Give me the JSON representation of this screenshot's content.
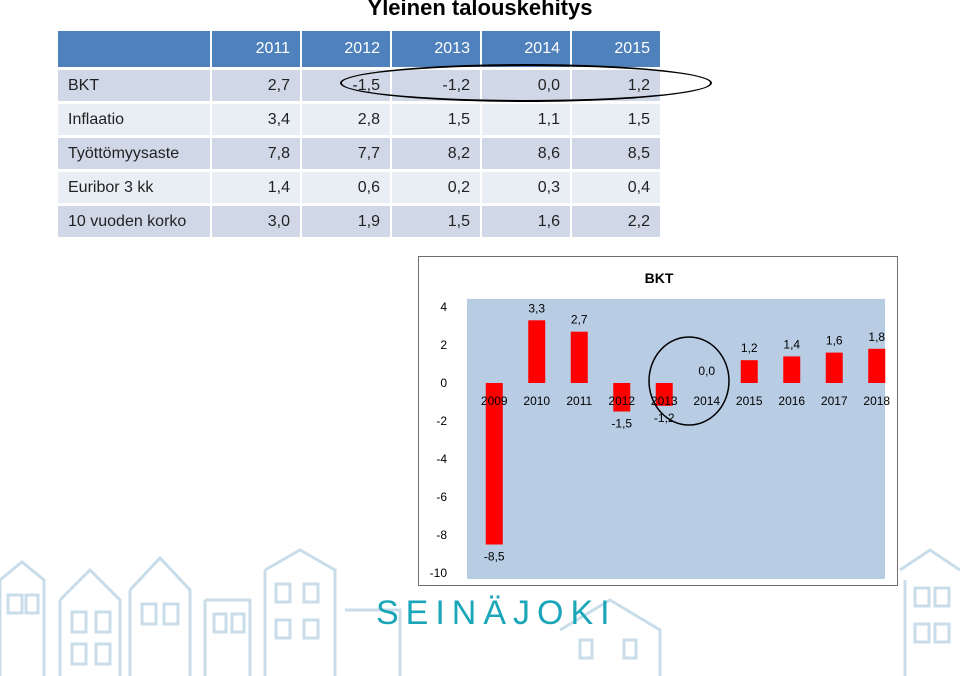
{
  "title": "Yleinen talouskehitys",
  "table": {
    "years": [
      "2011",
      "2012",
      "2013",
      "2014",
      "2015"
    ],
    "rows": [
      {
        "label": "BKT",
        "values": [
          "2,7",
          "-1,5",
          "-1,2",
          "0,0",
          "1,2"
        ]
      },
      {
        "label": "Inflaatio",
        "values": [
          "3,4",
          "2,8",
          "1,5",
          "1,1",
          "1,5"
        ]
      },
      {
        "label": "Työttömyysaste",
        "values": [
          "7,8",
          "7,7",
          "8,2",
          "8,6",
          "8,5"
        ]
      },
      {
        "label": "Euribor 3 kk",
        "values": [
          "1,4",
          "0,6",
          "0,2",
          "0,3",
          "0,4"
        ]
      },
      {
        "label": "10 vuoden korko",
        "values": [
          "3,0",
          "1,9",
          "1,5",
          "1,6",
          "2,2"
        ]
      }
    ]
  },
  "chart_data": {
    "type": "bar",
    "title": "BKT",
    "categories": [
      "2009",
      "2010",
      "2011",
      "2012",
      "2013",
      "2014",
      "2015",
      "2016",
      "2017",
      "2018"
    ],
    "values": [
      -8.5,
      3.3,
      2.7,
      -1.5,
      -1.2,
      0.0,
      1.2,
      1.4,
      1.6,
      1.8
    ],
    "value_labels": [
      "-8,5",
      "3,3",
      "2,7",
      "-1,5",
      "-1,2",
      "0,0",
      "1,2",
      "1,4",
      "1,6",
      "1,8"
    ],
    "yticks": [
      "4",
      "2",
      "0",
      "-2",
      "-4",
      "-6",
      "-8",
      "-10"
    ],
    "ylim": [
      -10,
      4
    ],
    "bar_color": "#ff0000",
    "plot_bg": "#b8cce4",
    "grid": false
  },
  "footer": {
    "logo_text": "SEINÄJOKI",
    "logo_color": "#1aa6b8"
  }
}
